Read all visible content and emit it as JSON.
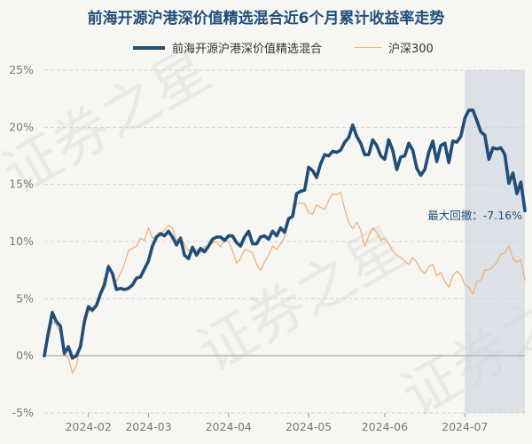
{
  "chart_data": {
    "type": "line",
    "title": "前海开源沪港深价值精选混合近6个月累计收益率走势",
    "ylim": [
      -5,
      25
    ],
    "yticks": [
      -5,
      0,
      5,
      10,
      15,
      20,
      25
    ],
    "ytick_labels": [
      "-5%",
      "0%",
      "5%",
      "10%",
      "15%",
      "20%",
      "25%"
    ],
    "xticks": [
      {
        "label": "2024-02",
        "index": 11
      },
      {
        "label": "2024-03",
        "index": 26
      },
      {
        "label": "2024-04",
        "index": 46
      },
      {
        "label": "2024-05",
        "index": 66
      },
      {
        "label": "2024-06",
        "index": 85
      },
      {
        "label": "2024-07",
        "index": 105
      }
    ],
    "series": [
      {
        "name": "前海开源沪港深价值精选混合",
        "color": "#1f4e79",
        "values": [
          0.0,
          2.0,
          3.8,
          3.0,
          2.6,
          0.2,
          0.8,
          -0.2,
          0.0,
          0.8,
          3.0,
          4.3,
          4.0,
          4.4,
          5.4,
          6.2,
          7.8,
          7.2,
          5.8,
          5.9,
          5.8,
          5.9,
          6.2,
          6.8,
          6.9,
          7.6,
          8.3,
          9.6,
          10.4,
          10.7,
          10.5,
          10.9,
          10.4,
          9.7,
          10.3,
          8.8,
          8.5,
          9.5,
          8.8,
          9.4,
          9.1,
          9.6,
          10.2,
          10.4,
          10.4,
          10.1,
          10.5,
          10.5,
          9.9,
          9.6,
          10.4,
          10.9,
          9.8,
          9.8,
          10.4,
          10.5,
          10.2,
          10.9,
          10.5,
          11.2,
          10.8,
          12.0,
          12.2,
          14.2,
          14.4,
          14.5,
          16.5,
          16.2,
          15.6,
          16.8,
          17.6,
          17.5,
          17.9,
          17.8,
          18.0,
          18.7,
          19.1,
          20.2,
          19.2,
          18.6,
          17.6,
          17.6,
          18.9,
          18.4,
          17.5,
          17.2,
          18.9,
          18.0,
          16.3,
          17.4,
          17.5,
          18.6,
          18.0,
          16.4,
          15.8,
          16.3,
          17.8,
          18.8,
          17.0,
          18.4,
          18.6,
          16.9,
          18.8,
          18.7,
          19.2,
          20.8,
          21.5,
          21.5,
          20.6,
          19.6,
          19.3,
          17.2,
          18.2,
          18.1,
          18.2,
          17.6,
          15.1,
          16.0,
          14.2,
          15.2,
          12.7
        ]
      },
      {
        "name": "沪深300",
        "color": "#f0b07a",
        "values": [
          0.0,
          1.5,
          3.0,
          2.7,
          2.0,
          0.0,
          -0.2,
          -1.5,
          -0.9,
          1.0,
          3.5,
          4.0,
          3.8,
          4.5,
          5.5,
          6.8,
          8.0,
          7.0,
          6.5,
          7.2,
          8.0,
          9.2,
          9.4,
          9.6,
          10.3,
          10.1,
          11.2,
          10.3,
          10.4,
          10.5,
          11.0,
          11.4,
          11.2,
          10.1,
          10.3,
          9.8,
          9.2,
          9.1,
          9.3,
          9.0,
          9.6,
          9.5,
          9.9,
          10.0,
          9.5,
          10.2,
          10.0,
          9.2,
          8.1,
          8.5,
          9.3,
          9.2,
          9.0,
          8.0,
          7.5,
          8.2,
          8.8,
          9.6,
          9.3,
          9.8,
          10.4,
          12.0,
          12.3,
          13.3,
          13.4,
          13.3,
          12.5,
          12.4,
          13.2,
          13.0,
          12.8,
          13.6,
          14.2,
          14.1,
          14.3,
          12.8,
          11.7,
          11.1,
          11.7,
          11.0,
          9.6,
          10.5,
          11.2,
          10.8,
          10.1,
          10.3,
          9.8,
          9.2,
          8.8,
          8.6,
          8.3,
          8.0,
          8.6,
          8.2,
          7.5,
          7.2,
          7.8,
          8.0,
          7.0,
          7.3,
          6.5,
          6.0,
          7.0,
          7.4,
          7.1,
          6.2,
          6.0,
          5.4,
          6.5,
          6.6,
          7.5,
          7.5,
          7.8,
          8.2,
          8.9,
          9.0,
          9.6,
          8.5,
          8.2,
          8.4,
          6.6
        ]
      }
    ],
    "annotation": {
      "text": "最大回撤：-7.16%",
      "start_index": 105,
      "end_index": 120
    }
  },
  "watermark": "证券之星"
}
